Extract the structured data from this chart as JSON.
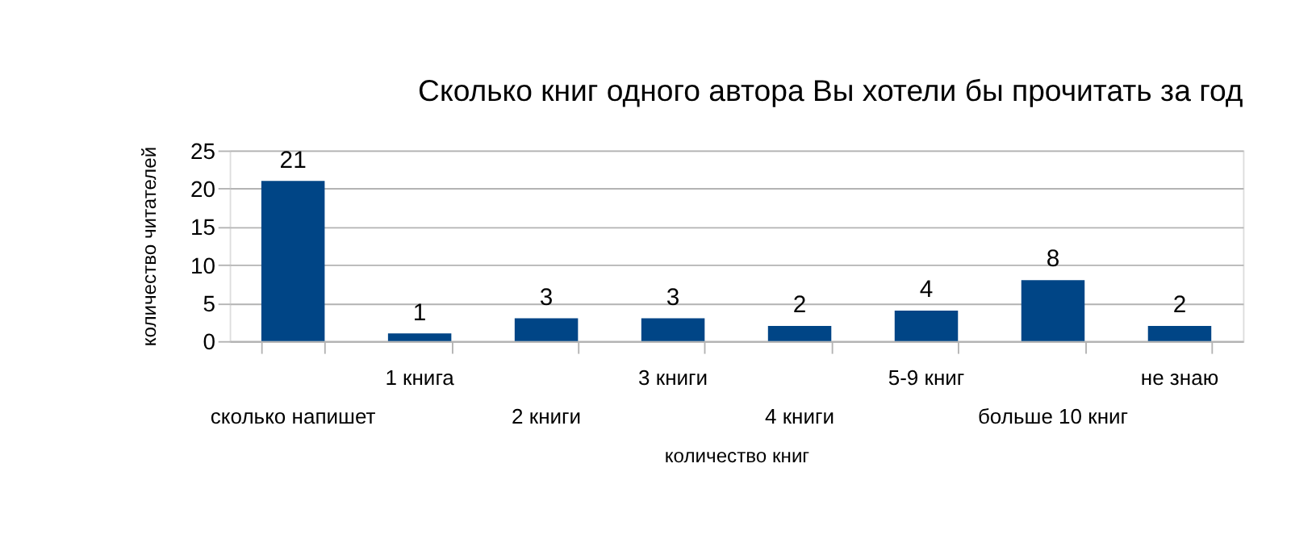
{
  "chart_data": {
    "type": "bar",
    "title": "Сколько книг одного автора Вы хотели бы прочитать за год",
    "xlabel": "количество книг",
    "ylabel": "количество читателей",
    "categories": [
      "сколько напишет",
      "1 книга",
      "2 книги",
      "3 книги",
      "4 книги",
      "5-9 книг",
      "больше 10 книг",
      "не знаю"
    ],
    "values": [
      21,
      1,
      3,
      3,
      2,
      4,
      8,
      2
    ],
    "color": "#004586",
    "ylim": [
      0,
      25
    ],
    "yticks": [
      0,
      5,
      10,
      15,
      20,
      25
    ],
    "grid": "y",
    "data_labels": true
  }
}
